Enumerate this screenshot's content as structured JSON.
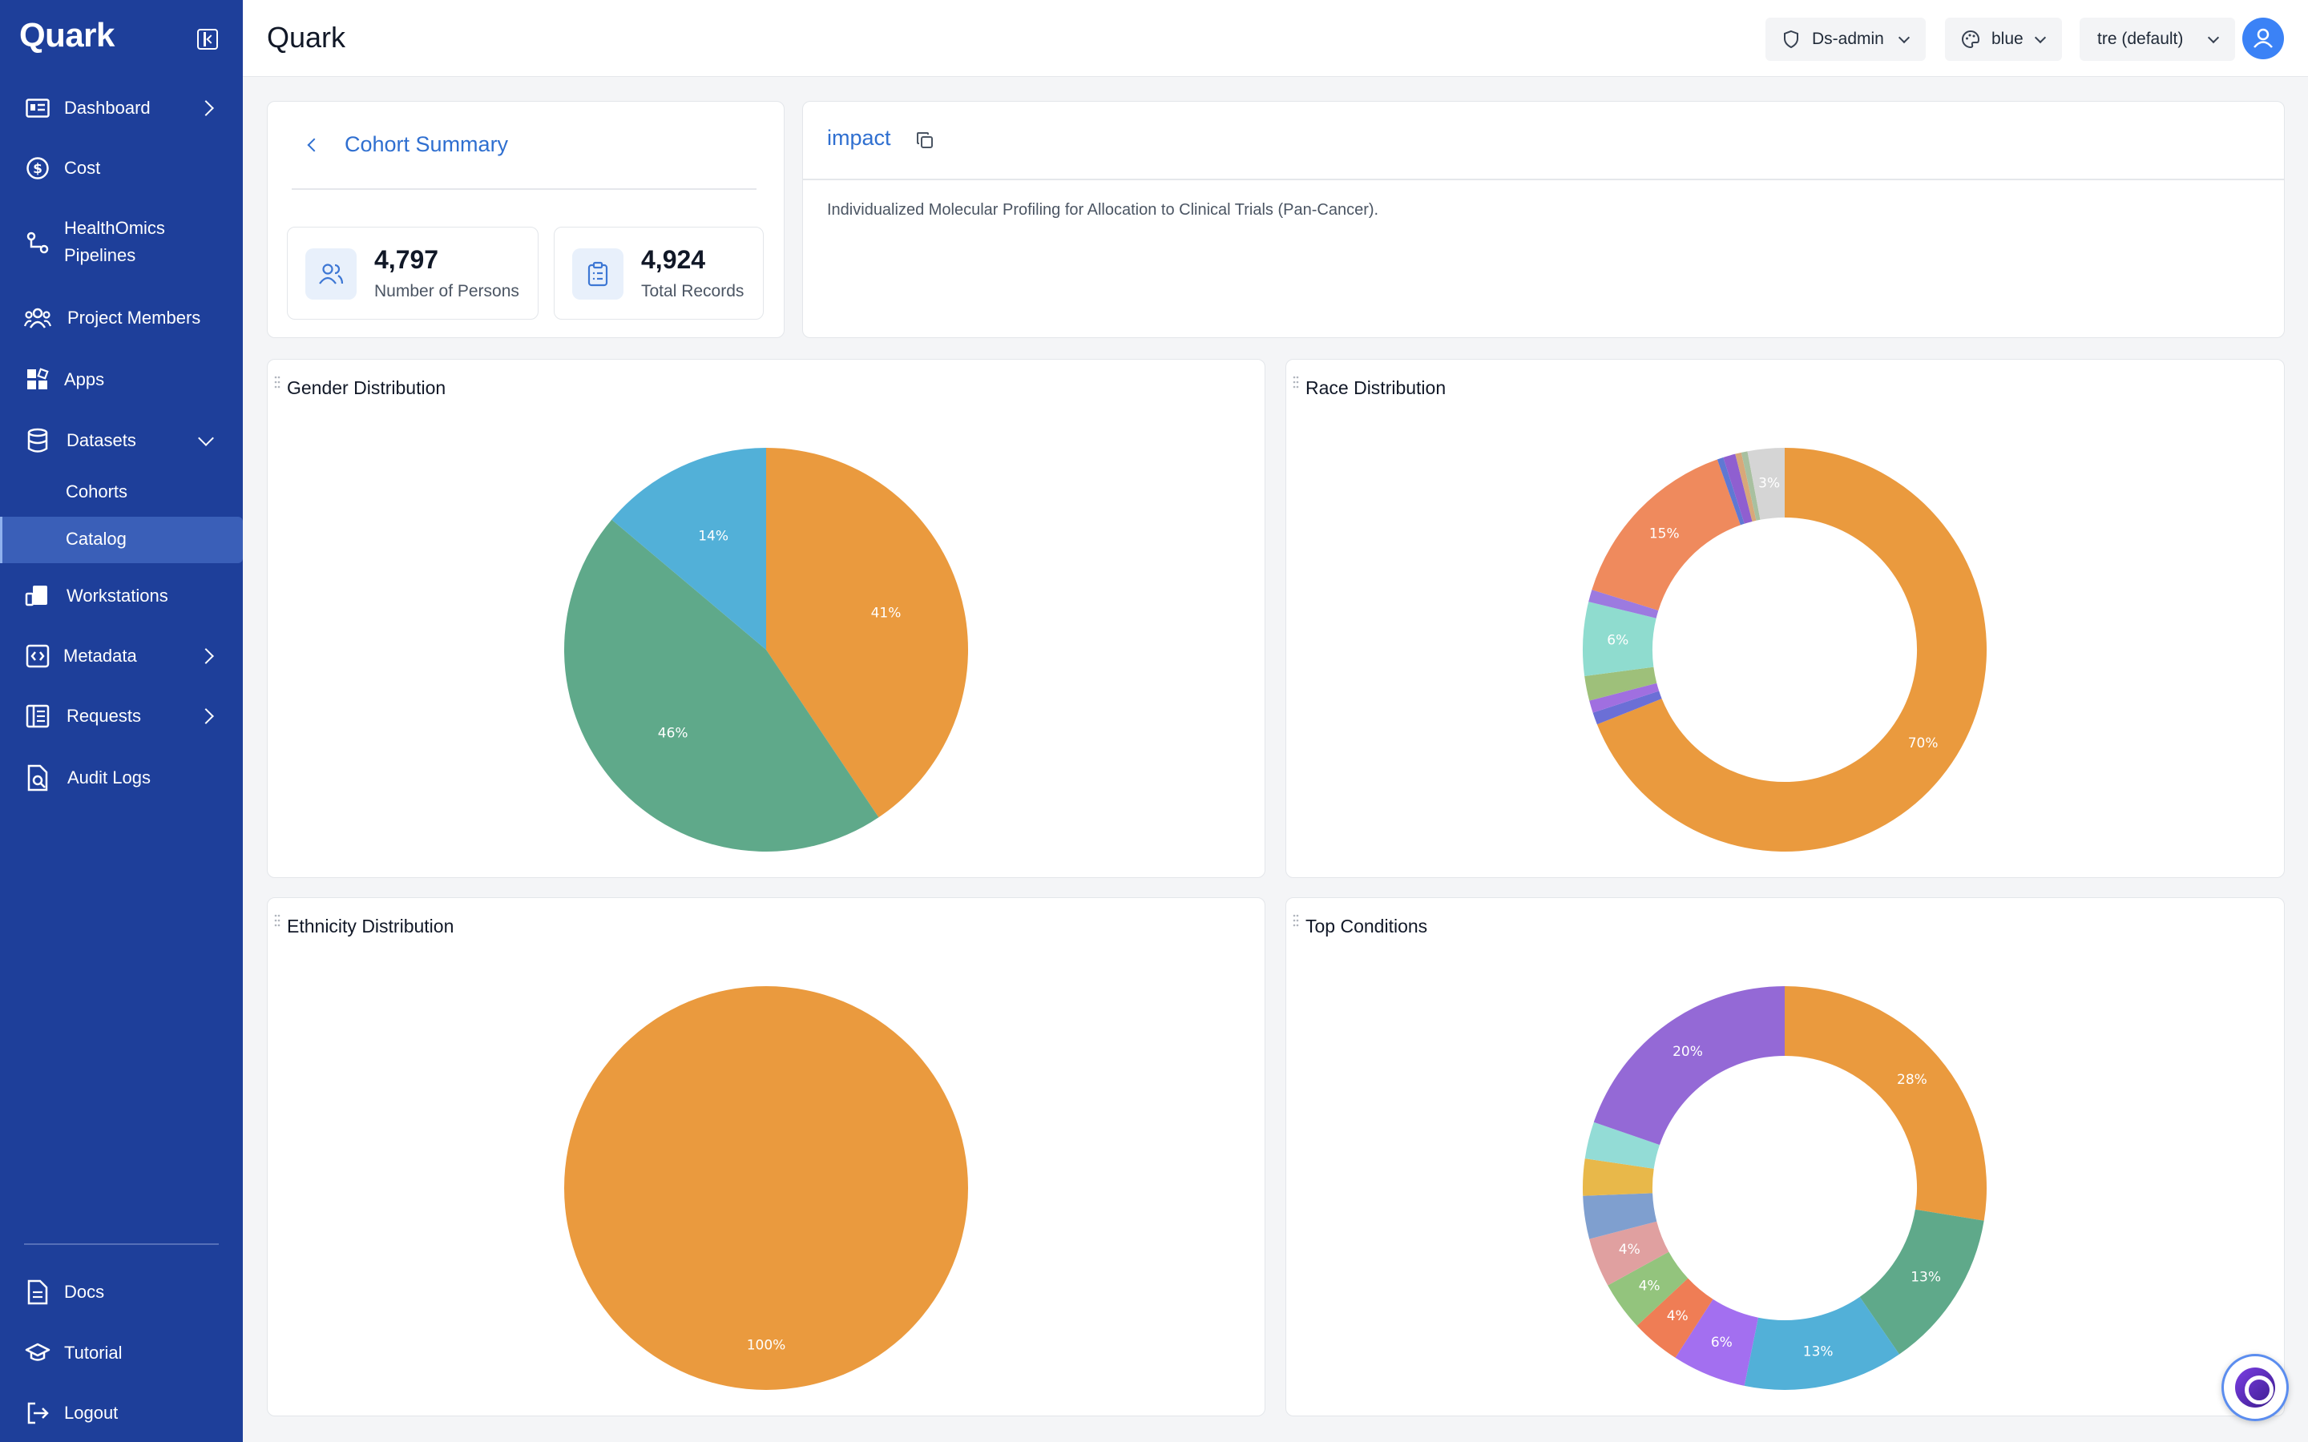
{
  "app": {
    "brand": "Quark",
    "title": "Quark"
  },
  "sidebar": {
    "items": [
      {
        "label": "Dashboard",
        "icon": "dashboard-icon"
      },
      {
        "label": "Cost",
        "icon": "dollar-icon"
      },
      {
        "label": "HealthOmics",
        "label2": "Pipelines",
        "icon": "pipeline-icon"
      },
      {
        "label": "Project Members",
        "icon": "users-icon"
      },
      {
        "label": "Apps",
        "icon": "apps-icon"
      },
      {
        "label": "Datasets",
        "icon": "database-icon"
      },
      {
        "label": "Workstations",
        "icon": "workstation-icon"
      },
      {
        "label": "Metadata",
        "icon": "code-icon"
      },
      {
        "label": "Requests",
        "icon": "requests-icon"
      },
      {
        "label": "Audit Logs",
        "icon": "audit-icon"
      }
    ],
    "sub_items": [
      "Cohorts",
      "Catalog"
    ],
    "active_sub_item": "Catalog",
    "footer": [
      "Docs",
      "Tutorial",
      "Logout"
    ]
  },
  "header": {
    "role": "Ds-admin",
    "theme": "blue",
    "workspace": "tre (default)"
  },
  "summary": {
    "title": "Cohort Summary",
    "persons_value": "4,797",
    "persons_label": "Number of Persons",
    "records_value": "4,924",
    "records_label": "Total Records"
  },
  "impact": {
    "title": "impact",
    "description": "Individualized Molecular Profiling for Allocation to Clinical Trials (Pan-Cancer)."
  },
  "colors": {
    "sidebar": "#1e3f9a",
    "accent": "#2f6fd0",
    "orange": "#ea9a3e",
    "green": "#5fa98a",
    "blue": "#52b0d8",
    "purple": "#9469d6"
  },
  "chart_data": [
    {
      "type": "pie",
      "title": "Gender Distribution",
      "categories": [
        "",
        "",
        ""
      ],
      "values": [
        41,
        46,
        14
      ],
      "labels": [
        "41%",
        "46%",
        "14%"
      ],
      "colors": [
        "#ea9a3e",
        "#5fa98a",
        "#52b0d8"
      ]
    },
    {
      "type": "pie",
      "title": "Race Distribution",
      "donut": true,
      "values": [
        70,
        1,
        1,
        2,
        6,
        1,
        15,
        0.5,
        1,
        0.5,
        0.5,
        3
      ],
      "labels": [
        "70%",
        "",
        "",
        "",
        "6%",
        "",
        "15%",
        "",
        "",
        "",
        "",
        "3%"
      ],
      "colors": [
        "#ea9a3e",
        "#6b6fd6",
        "#a06fe0",
        "#9ec07a",
        "#8fdccf",
        "#9c7ae0",
        "#ef8a5d",
        "#5f78d3",
        "#8f5fd0",
        "#d8a87a",
        "#a8c0a0",
        "#d5d5d5"
      ]
    },
    {
      "type": "pie",
      "title": "Ethnicity Distribution",
      "values": [
        100
      ],
      "labels": [
        "100%"
      ],
      "colors": [
        "#ea9a3e"
      ]
    },
    {
      "type": "pie",
      "title": "Top Conditions",
      "donut": true,
      "values": [
        28,
        13,
        13,
        6,
        4,
        4,
        4,
        3.5,
        3,
        3,
        20
      ],
      "labels": [
        "28%",
        "13%",
        "13%",
        "6%",
        "4%",
        "4%",
        "4%",
        "",
        "",
        "",
        "20%"
      ],
      "colors": [
        "#ea9a3e",
        "#5fa98a",
        "#52b0d8",
        "#a36ff0",
        "#ef7d55",
        "#93c47d",
        "#e0a0a0",
        "#7f9fcf",
        "#e8b84a",
        "#93dcd6",
        "#9469d6"
      ]
    }
  ]
}
